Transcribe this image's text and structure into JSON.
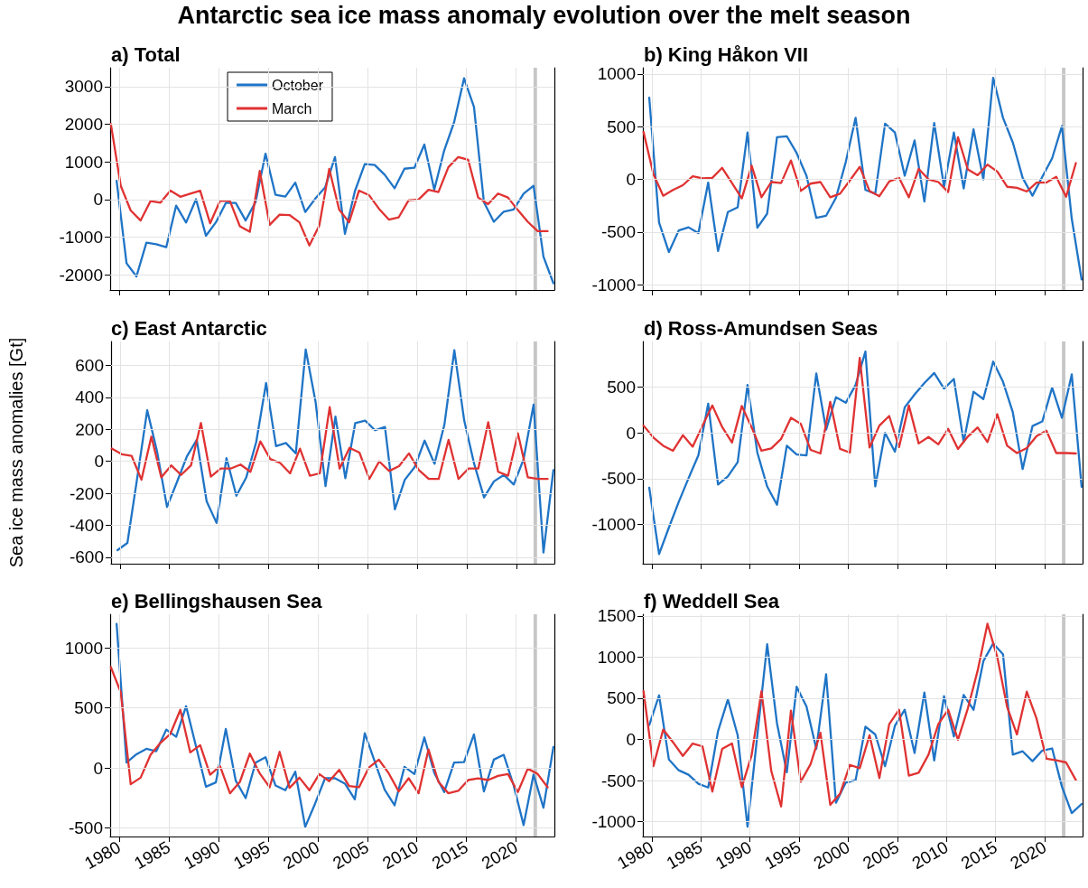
{
  "chart_data": [
    {
      "type": "line",
      "title": "Antarctic sea ice mass anomaly evolution over the melt season",
      "subtitle": "a) Total",
      "xlim": [
        1979.1,
        2023.85
      ],
      "xticks": [
        1980,
        1985,
        1990,
        1995,
        2000,
        2005,
        2010,
        2015,
        2020
      ],
      "ylim": [
        -2400,
        3500
      ],
      "yticks": [
        -2000,
        -1000,
        0,
        1000,
        2000,
        3000
      ],
      "grid": true,
      "tick_labels": "y",
      "legend": "top",
      "bands": [
        {
          "axis": "x",
          "from": 2021.75,
          "to": 2022.1,
          "color": "#c0c0c0"
        }
      ],
      "series": [
        {
          "name": "October",
          "color": "#1f74c6",
          "x": [
            1979.75,
            1980.75,
            1981.75,
            1982.75,
            1983.75,
            1984.75,
            1985.75,
            1986.75,
            1987.75,
            1988.75,
            1989.75,
            1990.75,
            1991.75,
            1992.75,
            1993.75,
            1994.75,
            1995.75,
            1996.75,
            1997.75,
            1998.75,
            1999.75,
            2000.75,
            2001.75,
            2002.75,
            2003.75,
            2004.75,
            2005.75,
            2006.75,
            2007.75,
            2008.75,
            2009.75,
            2010.75,
            2011.75,
            2012.75,
            2013.75,
            2014.75,
            2015.75,
            2016.75,
            2017.75,
            2018.75,
            2019.75,
            2020.75,
            2021.75,
            2022.75,
            2023.75
          ],
          "values": [
            500,
            -1690,
            -2040,
            -1145,
            -1185,
            -1265,
            -160,
            -610,
            10,
            -960,
            -605,
            -90,
            -90,
            -555,
            -65,
            1220,
            130,
            80,
            450,
            -330,
            20,
            320,
            1130,
            -910,
            220,
            945,
            920,
            660,
            300,
            820,
            845,
            1460,
            260,
            1305,
            2055,
            3220,
            2460,
            -65,
            -590,
            -320,
            -265,
            155,
            365,
            -1515,
            -2220
          ]
        },
        {
          "name": "March",
          "color": "#e03232",
          "x": [
            1979.17,
            1980.17,
            1981.17,
            1982.17,
            1983.17,
            1984.17,
            1985.17,
            1986.17,
            1987.17,
            1988.17,
            1989.17,
            1990.17,
            1991.17,
            1992.17,
            1993.17,
            1994.17,
            1995.17,
            1996.17,
            1997.17,
            1998.17,
            1999.17,
            2000.17,
            2001.17,
            2002.17,
            2003.17,
            2004.17,
            2005.17,
            2006.17,
            2007.17,
            2008.17,
            2009.17,
            2010.17,
            2011.17,
            2012.17,
            2013.17,
            2014.17,
            2015.17,
            2016.17,
            2017.17,
            2018.17,
            2019.17,
            2020.17,
            2021.17,
            2022.17,
            2023.17
          ],
          "values": [
            2010,
            365,
            -290,
            -555,
            -40,
            -80,
            240,
            75,
            155,
            235,
            -630,
            -30,
            -40,
            -710,
            -855,
            760,
            -670,
            -400,
            -410,
            -605,
            -1220,
            -685,
            815,
            -265,
            -605,
            240,
            120,
            -240,
            -530,
            -470,
            -15,
            0,
            260,
            200,
            860,
            1130,
            1055,
            55,
            -120,
            160,
            55,
            -280,
            -590,
            -840,
            -840
          ]
        }
      ]
    },
    {
      "type": "line",
      "subtitle": "b) King Håkon VII",
      "xlim": [
        1979.1,
        2023.85
      ],
      "xticks": [
        1980,
        1985,
        1990,
        1995,
        2000,
        2005,
        2010,
        2015,
        2020
      ],
      "ylim": [
        -1050,
        1060
      ],
      "yticks": [
        -1000,
        -500,
        0,
        500,
        1000
      ],
      "grid": true,
      "tick_labels": "y",
      "bands": [
        {
          "axis": "x",
          "from": 2021.75,
          "to": 2022.1,
          "color": "#c0c0c0"
        }
      ],
      "series": [
        {
          "color": "#1f74c6",
          "x": [
            1979.75,
            1980.75,
            1981.75,
            1982.75,
            1983.75,
            1984.75,
            1985.75,
            1986.75,
            1987.75,
            1988.75,
            1989.75,
            1990.75,
            1991.75,
            1992.75,
            1993.75,
            1994.75,
            1995.75,
            1996.75,
            1997.75,
            1998.75,
            1999.75,
            2000.75,
            2001.75,
            2002.75,
            2003.75,
            2004.75,
            2005.75,
            2006.75,
            2007.75,
            2008.75,
            2009.75,
            2010.75,
            2011.75,
            2012.75,
            2013.75,
            2014.75,
            2015.75,
            2016.75,
            2017.75,
            2018.75,
            2019.75,
            2020.75,
            2021.75,
            2022.75,
            2023.75
          ],
          "values": [
            775,
            -410,
            -690,
            -485,
            -455,
            -510,
            -30,
            -680,
            -310,
            -265,
            445,
            -460,
            -325,
            400,
            410,
            250,
            35,
            -365,
            -345,
            -175,
            165,
            585,
            -100,
            -135,
            530,
            445,
            35,
            370,
            -210,
            535,
            -70,
            445,
            -85,
            475,
            0,
            965,
            585,
            350,
            15,
            -155,
            25,
            200,
            505,
            -375,
            -950
          ]
        },
        {
          "color": "#e03232",
          "x": [
            1979.17,
            1980.17,
            1981.17,
            1982.17,
            1983.17,
            1984.17,
            1985.17,
            1986.17,
            1987.17,
            1988.17,
            1989.17,
            1990.17,
            1991.17,
            1992.17,
            1993.17,
            1994.17,
            1995.17,
            1996.17,
            1997.17,
            1998.17,
            1999.17,
            2000.17,
            2001.17,
            2002.17,
            2003.17,
            2004.17,
            2005.17,
            2006.17,
            2007.17,
            2008.17,
            2009.17,
            2010.17,
            2011.17,
            2012.17,
            2013.17,
            2014.17,
            2015.17,
            2016.17,
            2017.17,
            2018.17,
            2019.17,
            2020.17,
            2021.17,
            2022.17,
            2023.17
          ],
          "values": [
            450,
            50,
            -155,
            -100,
            -55,
            30,
            10,
            15,
            110,
            -35,
            -180,
            130,
            -170,
            -25,
            -35,
            180,
            -110,
            -40,
            -25,
            -170,
            -135,
            -10,
            120,
            -110,
            -160,
            -20,
            15,
            -170,
            100,
            0,
            -25,
            -120,
            400,
            95,
            40,
            140,
            75,
            -70,
            -80,
            -115,
            -30,
            -30,
            25,
            -165,
            155
          ]
        }
      ]
    },
    {
      "type": "line",
      "subtitle": "c) East Antarctic",
      "ylabel": "Sea ice mass anomalies [Gt]",
      "xlim": [
        1979.1,
        2023.85
      ],
      "xticks": [
        1980,
        1985,
        1990,
        1995,
        2000,
        2005,
        2010,
        2015,
        2020
      ],
      "ylim": [
        -640,
        750
      ],
      "yticks": [
        -600,
        -400,
        -200,
        0,
        200,
        400,
        600
      ],
      "grid": true,
      "tick_labels": "y",
      "bands": [
        {
          "axis": "x",
          "from": 2021.75,
          "to": 2022.1,
          "color": "#c0c0c0"
        }
      ],
      "series": [
        {
          "color": "#1f74c6",
          "x": [
            1979.75,
            1980.75,
            1981.75,
            1982.75,
            1983.75,
            1984.75,
            1985.75,
            1986.75,
            1987.75,
            1988.75,
            1989.75,
            1990.75,
            1991.75,
            1992.75,
            1993.75,
            1994.75,
            1995.75,
            1996.75,
            1997.75,
            1998.75,
            1999.75,
            2000.75,
            2001.75,
            2002.75,
            2003.75,
            2004.75,
            2005.75,
            2006.75,
            2007.75,
            2008.75,
            2009.75,
            2010.75,
            2011.75,
            2012.75,
            2013.75,
            2014.75,
            2015.75,
            2016.75,
            2017.75,
            2018.75,
            2019.75,
            2020.75,
            2021.75,
            2022.75,
            2023.75
          ],
          "values": [
            -555,
            -510,
            -100,
            320,
            60,
            -285,
            -130,
            30,
            135,
            -250,
            -385,
            20,
            -215,
            -100,
            120,
            490,
            95,
            115,
            50,
            700,
            370,
            -155,
            280,
            -105,
            240,
            255,
            195,
            215,
            -300,
            -115,
            -35,
            130,
            -15,
            230,
            695,
            255,
            -15,
            -225,
            -125,
            -85,
            -145,
            15,
            355,
            -570,
            -55
          ]
        },
        {
          "color": "#e03232",
          "x": [
            1979.17,
            1980.17,
            1981.17,
            1982.17,
            1983.17,
            1984.17,
            1985.17,
            1986.17,
            1987.17,
            1988.17,
            1989.17,
            1990.17,
            1991.17,
            1992.17,
            1993.17,
            1994.17,
            1995.17,
            1996.17,
            1997.17,
            1998.17,
            1999.17,
            2000.17,
            2001.17,
            2002.17,
            2003.17,
            2004.17,
            2005.17,
            2006.17,
            2007.17,
            2008.17,
            2009.17,
            2010.17,
            2011.17,
            2012.17,
            2013.17,
            2014.17,
            2015.17,
            2016.17,
            2017.17,
            2018.17,
            2019.17,
            2020.17,
            2021.17,
            2022.17,
            2023.17
          ],
          "values": [
            80,
            45,
            35,
            -115,
            155,
            -100,
            -25,
            -85,
            -25,
            240,
            -95,
            -45,
            -45,
            -20,
            -65,
            125,
            15,
            -10,
            -75,
            80,
            -90,
            -75,
            340,
            -45,
            85,
            55,
            -110,
            0,
            -60,
            -30,
            50,
            -55,
            -110,
            -110,
            135,
            -110,
            -45,
            -45,
            245,
            -65,
            -90,
            175,
            -100,
            -110,
            -110
          ]
        }
      ]
    },
    {
      "type": "line",
      "subtitle": "d) Ross-Amundsen Seas",
      "xlim": [
        1979.1,
        2023.85
      ],
      "xticks": [
        1980,
        1985,
        1990,
        1995,
        2000,
        2005,
        2010,
        2015,
        2020
      ],
      "ylim": [
        -1430,
        1000
      ],
      "yticks": [
        -1000,
        -500,
        0,
        500
      ],
      "grid": true,
      "tick_labels": "y",
      "bands": [
        {
          "axis": "x",
          "from": 2021.75,
          "to": 2022.1,
          "color": "#c0c0c0"
        }
      ],
      "series": [
        {
          "color": "#1f74c6",
          "x": [
            1979.75,
            1980.75,
            1981.75,
            1982.75,
            1983.75,
            1984.75,
            1985.75,
            1986.75,
            1987.75,
            1988.75,
            1989.75,
            1990.75,
            1991.75,
            1992.75,
            1993.75,
            1994.75,
            1995.75,
            1996.75,
            1997.75,
            1998.75,
            1999.75,
            2000.75,
            2001.75,
            2002.75,
            2003.75,
            2004.75,
            2005.75,
            2006.75,
            2007.75,
            2008.75,
            2009.75,
            2010.75,
            2011.75,
            2012.75,
            2013.75,
            2014.75,
            2015.75,
            2016.75,
            2017.75,
            2018.75,
            2019.75,
            2020.75,
            2021.75,
            2022.75,
            2023.75
          ],
          "values": [
            -600,
            -1325,
            -1035,
            -755,
            -495,
            -245,
            320,
            -565,
            -475,
            -320,
            525,
            -215,
            -585,
            -785,
            -140,
            -235,
            -245,
            650,
            35,
            390,
            330,
            525,
            890,
            -585,
            0,
            -205,
            280,
            420,
            545,
            655,
            485,
            590,
            -100,
            450,
            370,
            780,
            560,
            225,
            -395,
            75,
            125,
            495,
            165,
            640,
            -590
          ]
        },
        {
          "color": "#e03232",
          "x": [
            1979.17,
            1980.17,
            1981.17,
            1982.17,
            1983.17,
            1984.17,
            1985.17,
            1986.17,
            1987.17,
            1988.17,
            1989.17,
            1990.17,
            1991.17,
            1992.17,
            1993.17,
            1994.17,
            1995.17,
            1996.17,
            1997.17,
            1998.17,
            1999.17,
            2000.17,
            2001.17,
            2002.17,
            2003.17,
            2004.17,
            2005.17,
            2006.17,
            2007.17,
            2008.17,
            2009.17,
            2010.17,
            2011.17,
            2012.17,
            2013.17,
            2014.17,
            2015.17,
            2016.17,
            2017.17,
            2018.17,
            2019.17,
            2020.17,
            2021.17,
            2022.17,
            2023.17
          ],
          "values": [
            80,
            -50,
            -140,
            -195,
            -25,
            -150,
            80,
            300,
            65,
            -105,
            295,
            60,
            -195,
            -170,
            -65,
            165,
            100,
            -185,
            -225,
            340,
            -175,
            -215,
            820,
            -160,
            80,
            185,
            -155,
            300,
            -115,
            -45,
            -125,
            45,
            -175,
            -40,
            60,
            -100,
            205,
            -140,
            -220,
            -165,
            -35,
            25,
            -220,
            -220,
            -225
          ]
        }
      ]
    },
    {
      "type": "line",
      "subtitle": "e) Bellingshausen Sea",
      "xlim": [
        1979.1,
        2023.85
      ],
      "xticks": [
        1980,
        1985,
        1990,
        1995,
        2000,
        2005,
        2010,
        2015,
        2020
      ],
      "ylim": [
        -570,
        1280
      ],
      "yticks": [
        -500,
        0,
        500,
        1000
      ],
      "grid": true,
      "bands": [
        {
          "axis": "x",
          "from": 2021.75,
          "to": 2022.1,
          "color": "#c0c0c0"
        }
      ],
      "series": [
        {
          "color": "#1f74c6",
          "x": [
            1979.75,
            1980.75,
            1981.75,
            1982.75,
            1983.75,
            1984.75,
            1985.75,
            1986.75,
            1987.75,
            1988.75,
            1989.75,
            1990.75,
            1991.75,
            1992.75,
            1993.75,
            1994.75,
            1995.75,
            1996.75,
            1997.75,
            1998.75,
            1999.75,
            2000.75,
            2001.75,
            2002.75,
            2003.75,
            2004.75,
            2005.75,
            2006.75,
            2007.75,
            2008.75,
            2009.75,
            2010.75,
            2011.75,
            2012.75,
            2013.75,
            2014.75,
            2015.75,
            2016.75,
            2017.75,
            2018.75,
            2019.75,
            2020.75,
            2021.75,
            2022.75,
            2023.75
          ],
          "values": [
            1200,
            45,
            115,
            160,
            140,
            320,
            260,
            515,
            180,
            -155,
            -120,
            325,
            -105,
            -250,
            45,
            90,
            -145,
            -185,
            -30,
            -490,
            -295,
            -85,
            -85,
            -130,
            -260,
            290,
            55,
            -180,
            -310,
            10,
            -50,
            255,
            -40,
            -200,
            45,
            50,
            280,
            -195,
            70,
            110,
            -145,
            -475,
            -55,
            -330,
            175
          ]
        },
        {
          "color": "#e03232",
          "x": [
            1979.17,
            1980.17,
            1981.17,
            1982.17,
            1983.17,
            1984.17,
            1985.17,
            1986.17,
            1987.17,
            1988.17,
            1989.17,
            1990.17,
            1991.17,
            1992.17,
            1993.17,
            1994.17,
            1995.17,
            1996.17,
            1997.17,
            1998.17,
            1999.17,
            2000.17,
            2001.17,
            2002.17,
            2003.17,
            2004.17,
            2005.17,
            2006.17,
            2007.17,
            2008.17,
            2009.17,
            2010.17,
            2011.17,
            2012.17,
            2013.17,
            2014.17,
            2015.17,
            2016.17,
            2017.17,
            2018.17,
            2019.17,
            2020.17,
            2021.17,
            2022.17,
            2023.17
          ],
          "values": [
            840,
            630,
            -135,
            -80,
            110,
            210,
            285,
            485,
            130,
            190,
            -55,
            15,
            -210,
            -115,
            120,
            -45,
            -160,
            135,
            -165,
            -80,
            -185,
            -50,
            -110,
            -15,
            -150,
            -160,
            5,
            70,
            -45,
            -195,
            -85,
            -210,
            155,
            -115,
            -210,
            -190,
            -100,
            -85,
            -100,
            -65,
            -50,
            -200,
            -5,
            -50,
            -160
          ]
        }
      ]
    },
    {
      "type": "line",
      "subtitle": "f) Weddell Sea",
      "xlim": [
        1979.1,
        2023.85
      ],
      "xticks": [
        1980,
        1985,
        1990,
        1995,
        2000,
        2005,
        2010,
        2015,
        2020
      ],
      "ylim": [
        -1180,
        1520
      ],
      "yticks": [
        -1000,
        -500,
        0,
        500,
        1000,
        1500
      ],
      "grid": true,
      "bands": [
        {
          "axis": "x",
          "from": 2021.75,
          "to": 2022.1,
          "color": "#c0c0c0"
        }
      ],
      "series": [
        {
          "color": "#1f74c6",
          "x": [
            1979.75,
            1980.75,
            1981.75,
            1982.75,
            1983.75,
            1984.75,
            1985.75,
            1986.75,
            1987.75,
            1988.75,
            1989.75,
            1990.75,
            1991.75,
            1992.75,
            1993.75,
            1994.75,
            1995.75,
            1996.75,
            1997.75,
            1998.75,
            1999.75,
            2000.75,
            2001.75,
            2002.75,
            2003.75,
            2004.75,
            2005.75,
            2006.75,
            2007.75,
            2008.75,
            2009.75,
            2010.75,
            2011.75,
            2012.75,
            2013.75,
            2014.75,
            2015.75,
            2016.75,
            2017.75,
            2018.75,
            2019.75,
            2020.75,
            2021.75,
            2022.75,
            2023.75
          ],
          "values": [
            175,
            535,
            -245,
            -375,
            -430,
            -540,
            -585,
            100,
            485,
            50,
            -1060,
            50,
            1155,
            195,
            -400,
            640,
            400,
            -115,
            790,
            -770,
            -525,
            -495,
            155,
            60,
            -325,
            165,
            360,
            -165,
            570,
            -255,
            525,
            35,
            540,
            360,
            950,
            1165,
            1035,
            -185,
            -145,
            -265,
            -135,
            -110,
            -575,
            -895,
            -785
          ]
        },
        {
          "color": "#e03232",
          "x": [
            1979.17,
            1980.17,
            1981.17,
            1982.17,
            1983.17,
            1984.17,
            1985.17,
            1986.17,
            1987.17,
            1988.17,
            1989.17,
            1990.17,
            1991.17,
            1992.17,
            1993.17,
            1994.17,
            1995.17,
            1996.17,
            1997.17,
            1998.17,
            1999.17,
            2000.17,
            2001.17,
            2002.17,
            2003.17,
            2004.17,
            2005.17,
            2006.17,
            2007.17,
            2008.17,
            2009.17,
            2010.17,
            2011.17,
            2012.17,
            2013.17,
            2014.17,
            2015.17,
            2016.17,
            2017.17,
            2018.17,
            2019.17,
            2020.17,
            2021.17,
            2022.17,
            2023.17
          ],
          "values": [
            585,
            -325,
            120,
            -35,
            -200,
            -50,
            -85,
            -635,
            -115,
            -50,
            -580,
            -190,
            585,
            -385,
            -815,
            350,
            -515,
            -300,
            80,
            -795,
            -660,
            -310,
            -350,
            50,
            -470,
            185,
            360,
            -440,
            -405,
            -185,
            185,
            360,
            -5,
            375,
            835,
            1405,
            1000,
            395,
            60,
            580,
            250,
            -235,
            -255,
            -280,
            -495
          ]
        }
      ]
    }
  ]
}
